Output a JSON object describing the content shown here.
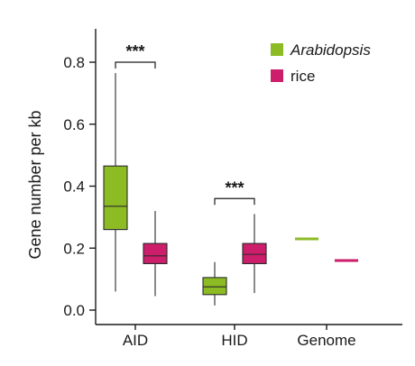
{
  "chart_data": {
    "type": "boxplot",
    "categories": [
      "AID",
      "HID",
      "Genome"
    ],
    "ylabel": "Gene number per kb",
    "ylim": [
      0.0,
      0.9
    ],
    "yticks": [
      "0.0",
      "0.2",
      "0.4",
      "0.6",
      "0.8"
    ],
    "legend_position": "top-right",
    "series": [
      {
        "name": "Arabidopsis",
        "color": "#8dbb24",
        "stats": [
          {
            "category": "AID",
            "min": 0.06,
            "q1": 0.26,
            "median": 0.335,
            "q3": 0.465,
            "max": 0.765
          },
          {
            "category": "HID",
            "min": 0.015,
            "q1": 0.05,
            "median": 0.075,
            "q3": 0.105,
            "max": 0.155
          },
          {
            "category": "Genome",
            "value": 0.23
          }
        ]
      },
      {
        "name": "rice",
        "color": "#cc1e6a",
        "stats": [
          {
            "category": "AID",
            "min": 0.045,
            "q1": 0.15,
            "median": 0.175,
            "q3": 0.215,
            "max": 0.32
          },
          {
            "category": "HID",
            "min": 0.055,
            "q1": 0.15,
            "median": 0.18,
            "q3": 0.215,
            "max": 0.31
          },
          {
            "category": "Genome",
            "value": 0.16
          }
        ]
      }
    ],
    "significance": [
      {
        "category": "AID",
        "label": "***",
        "level": 0.8
      },
      {
        "category": "HID",
        "label": "***",
        "level": 0.36
      }
    ]
  }
}
